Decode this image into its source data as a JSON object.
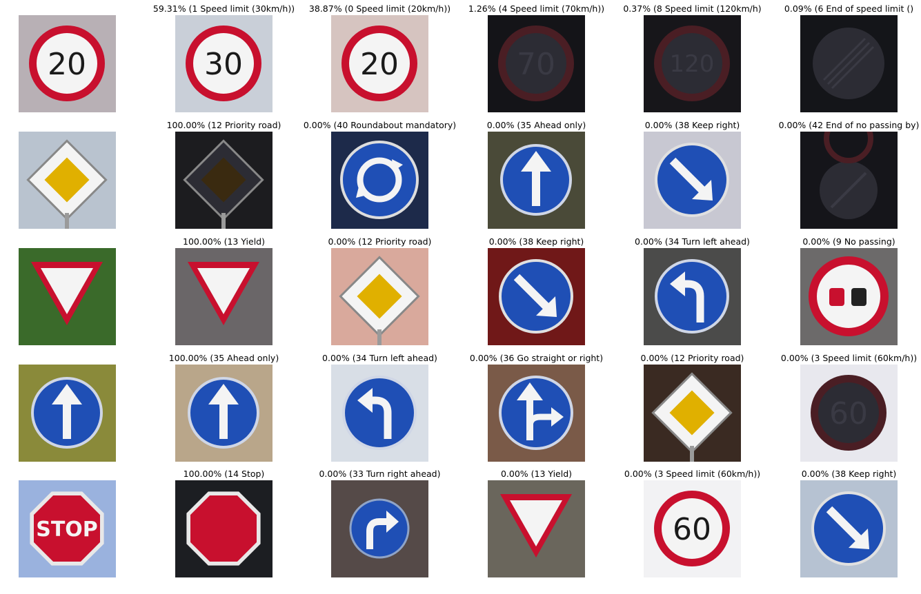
{
  "rows": [
    {
      "query": {
        "icon": "speed-limit-20-sign"
      },
      "predictions": [
        {
          "label": "59.31% (1 Speed limit (30km/h))",
          "icon": "speed-limit-30-sign",
          "value": 30
        },
        {
          "label": "38.87% (0 Speed limit (20km/h))",
          "icon": "speed-limit-20-sign",
          "value": 20
        },
        {
          "label": "1.26% (4 Speed limit (70km/h))",
          "icon": "speed-limit-70-sign",
          "value": 70
        },
        {
          "label": "0.37% (8 Speed limit (120km/h)",
          "icon": "speed-limit-120-sign",
          "value": 120
        },
        {
          "label": "0.09% (6 End of speed limit ()",
          "icon": "end-of-speed-limit-sign"
        }
      ]
    },
    {
      "query": {
        "icon": "priority-road-sign"
      },
      "predictions": [
        {
          "label": "100.00% (12 Priority road)",
          "icon": "priority-road-sign"
        },
        {
          "label": "0.00% (40 Roundabout mandatory)",
          "icon": "roundabout-sign"
        },
        {
          "label": "0.00% (35 Ahead only)",
          "icon": "ahead-only-sign"
        },
        {
          "label": "0.00% (38 Keep right)",
          "icon": "keep-right-sign"
        },
        {
          "label": "0.00% (42 End of no passing by)",
          "icon": "end-of-no-passing-sign"
        }
      ]
    },
    {
      "query": {
        "icon": "yield-sign"
      },
      "predictions": [
        {
          "label": "100.00% (13 Yield)",
          "icon": "yield-sign"
        },
        {
          "label": "0.00% (12 Priority road)",
          "icon": "priority-road-sign"
        },
        {
          "label": "0.00% (38 Keep right)",
          "icon": "keep-right-sign"
        },
        {
          "label": "0.00% (34 Turn left ahead)",
          "icon": "turn-left-ahead-sign"
        },
        {
          "label": "0.00% (9 No passing)",
          "icon": "no-passing-sign"
        }
      ]
    },
    {
      "query": {
        "icon": "ahead-only-sign"
      },
      "predictions": [
        {
          "label": "100.00% (35 Ahead only)",
          "icon": "ahead-only-sign"
        },
        {
          "label": "0.00% (34 Turn left ahead)",
          "icon": "turn-left-ahead-sign"
        },
        {
          "label": "0.00% (36 Go straight or right)",
          "icon": "go-straight-or-right-sign"
        },
        {
          "label": "0.00% (12 Priority road)",
          "icon": "priority-road-sign"
        },
        {
          "label": "0.00% (3 Speed limit (60km/h))",
          "icon": "speed-limit-60-sign",
          "value": 60
        }
      ]
    },
    {
      "query": {
        "icon": "stop-sign"
      },
      "predictions": [
        {
          "label": "100.00% (14 Stop)",
          "icon": "stop-sign"
        },
        {
          "label": "0.00% (33 Turn right ahead)",
          "icon": "turn-right-ahead-sign"
        },
        {
          "label": "0.00% (13 Yield)",
          "icon": "yield-sign"
        },
        {
          "label": "0.00% (3 Speed limit (60km/h))",
          "icon": "speed-limit-60-sign",
          "value": 60
        },
        {
          "label": "0.00% (38 Keep right)",
          "icon": "keep-right-sign"
        }
      ]
    }
  ],
  "query_text": {
    "speed-limit-20-sign": "20",
    "stop-sign": "STOP"
  },
  "colors": {
    "sign_red": "#c8102e",
    "sign_blue": "#1f4fb5",
    "priority_yellow": "#e0b000",
    "sign_white": "#f4f4f4"
  }
}
